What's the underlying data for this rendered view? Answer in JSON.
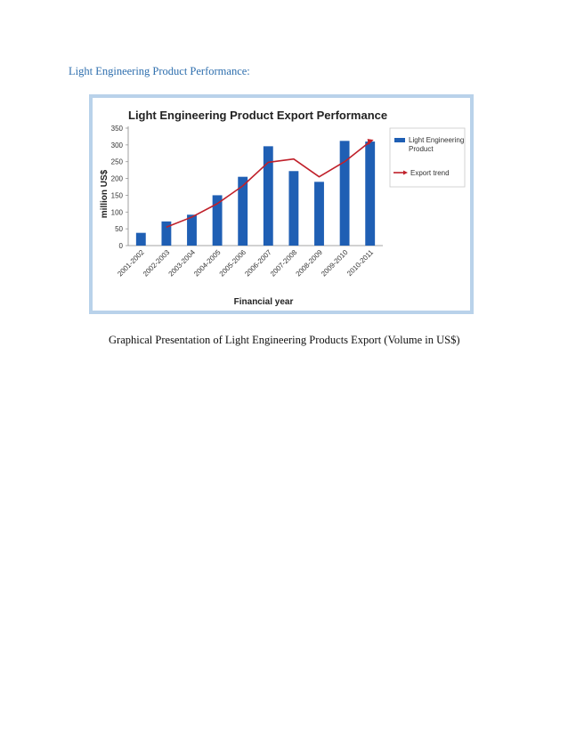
{
  "page": {
    "heading": "Light Engineering Product Performance:",
    "caption": "Graphical Presentation of Light Engineering Products Export (Volume in US$)"
  },
  "chart_data": {
    "type": "bar",
    "title": "Light Engineering Product Export Performance",
    "xlabel": "Financial year",
    "ylabel": "million US$",
    "ylim": [
      0,
      350
    ],
    "yticks": [
      0,
      50,
      100,
      150,
      200,
      250,
      300,
      350
    ],
    "grid": false,
    "legend_position": "right",
    "categories": [
      "2001-2002",
      "2002-2003",
      "2003-2004",
      "2004-2005",
      "2005-2006",
      "2006-2007",
      "2007-2008",
      "2008-2009",
      "2009-2010",
      "2010-2011"
    ],
    "series": [
      {
        "name": "Light Engineering Product",
        "kind": "bar",
        "color": "#1f5fb4",
        "values": [
          38,
          72,
          92,
          150,
          205,
          296,
          222,
          190,
          312,
          310
        ]
      },
      {
        "name": "Export trend",
        "kind": "line",
        "color": "#c0202a",
        "values": [
          null,
          55,
          85,
          125,
          178,
          248,
          258,
          205,
          250,
          310
        ]
      }
    ]
  }
}
